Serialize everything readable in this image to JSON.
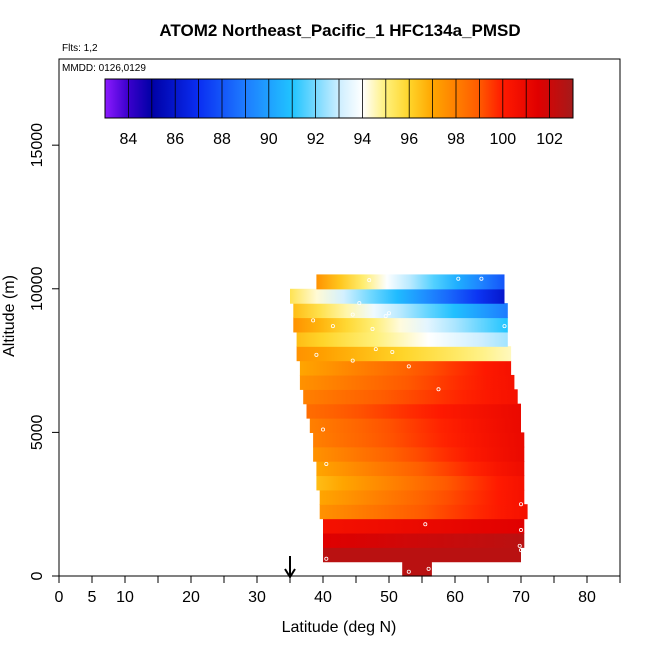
{
  "chart_data": {
    "type": "heatmap",
    "title": "ATOM2 Northeast_Pacific_1 HFC134a_PMSD",
    "flights_label": "Flts: 1,2",
    "mmdd_label": "MMDD: 0126,0129",
    "xlabel": "Latitude (deg N)",
    "ylabel": "Altitude (m)",
    "xlim": [
      0,
      85
    ],
    "ylim": [
      0,
      18000
    ],
    "xticks": [
      0,
      5,
      10,
      20,
      30,
      40,
      50,
      60,
      70,
      80
    ],
    "xticks_minor": [
      15,
      25,
      35,
      45,
      55,
      65,
      75,
      85
    ],
    "yticks": [
      0,
      5000,
      10000,
      15000
    ],
    "arrow_marker_lat": 35,
    "colorbar": {
      "min": 83,
      "max": 103,
      "ticks": [
        84,
        86,
        88,
        90,
        92,
        94,
        96,
        98,
        100,
        102
      ],
      "stops": [
        {
          "v": 83,
          "color": "#8c1aff"
        },
        {
          "v": 84,
          "color": "#3a00cc"
        },
        {
          "v": 85,
          "color": "#0000a6"
        },
        {
          "v": 87,
          "color": "#0a2ef2"
        },
        {
          "v": 89,
          "color": "#1e7cff"
        },
        {
          "v": 91,
          "color": "#20c4ff"
        },
        {
          "v": 93,
          "color": "#cdeeff"
        },
        {
          "v": 94,
          "color": "#ffffff"
        },
        {
          "v": 95,
          "color": "#fff07a"
        },
        {
          "v": 96,
          "color": "#ffd52a"
        },
        {
          "v": 97,
          "color": "#ffa500"
        },
        {
          "v": 99,
          "color": "#ff5a00"
        },
        {
          "v": 100,
          "color": "#ff1a00"
        },
        {
          "v": 101.5,
          "color": "#e00000"
        },
        {
          "v": 103,
          "color": "#a51a1a"
        }
      ]
    },
    "layer_altitudes_m": [
      0,
      500,
      1000,
      1500,
      2000,
      2500,
      3000,
      3500,
      4000,
      4500,
      5000,
      5500,
      6000,
      6500,
      7000,
      7500,
      8000,
      8500,
      9000,
      9500,
      10000,
      10500
    ],
    "layers": [
      {
        "lat0": 52.0,
        "lat1": 56.5,
        "v0": 102.5,
        "v1": 102.5
      },
      {
        "lat0": 40.0,
        "lat1": 70.0,
        "v0": 102.5,
        "v1": 102.5
      },
      {
        "lat0": 40.0,
        "lat1": 70.5,
        "v0": 101.5,
        "v1": 102.5
      },
      {
        "lat0": 40.0,
        "lat1": 70.5,
        "v0": 100.5,
        "v1": 101.5
      },
      {
        "lat0": 39.5,
        "lat1": 71.0,
        "v0": 97.5,
        "v1": 100.5
      },
      {
        "lat0": 39.5,
        "lat1": 70.5,
        "v0": 97.0,
        "v1": 100.5
      },
      {
        "lat0": 39.0,
        "lat1": 70.5,
        "v0": 96.5,
        "v1": 100.5
      },
      {
        "lat0": 39.0,
        "lat1": 70.5,
        "v0": 97.0,
        "v1": 100.8
      },
      {
        "lat0": 38.5,
        "lat1": 70.5,
        "v0": 97.5,
        "v1": 101.0
      },
      {
        "lat0": 38.5,
        "lat1": 70.5,
        "v0": 98.0,
        "v1": 101.0
      },
      {
        "lat0": 38.0,
        "lat1": 70.0,
        "v0": 98.0,
        "v1": 101.0
      },
      {
        "lat0": 37.5,
        "lat1": 70.0,
        "v0": 98.5,
        "v1": 101.0
      },
      {
        "lat0": 37.0,
        "lat1": 69.5,
        "v0": 98.0,
        "v1": 100.5
      },
      {
        "lat0": 36.5,
        "lat1": 69.0,
        "v0": 97.5,
        "v1": 100.5
      },
      {
        "lat0": 36.5,
        "lat1": 68.5,
        "v0": 97.0,
        "v1": 100.5
      },
      {
        "lat0": 36.0,
        "lat1": 68.5,
        "v0": 97.5,
        "v1": 94.5
      },
      {
        "lat0": 36.0,
        "lat1": 68.0,
        "v0": 96.5,
        "v1": 92.5
      },
      {
        "lat0": 35.5,
        "lat1": 68.0,
        "v0": 97.5,
        "v1": 91.0
      },
      {
        "lat0": 35.5,
        "lat1": 68.0,
        "v0": 96.5,
        "v1": 89.0
      },
      {
        "lat0": 35.0,
        "lat1": 67.5,
        "v0": 95.5,
        "v1": 86.0
      },
      {
        "lat0": 39.0,
        "lat1": 67.5,
        "v0": 97.5,
        "v1": 88.0
      },
      {
        "lat0": 66.5,
        "lat1": 67.5,
        "v0": 86.0,
        "v1": 85.0
      }
    ],
    "sample_points": [
      [
        53.0,
        150
      ],
      [
        56.0,
        250
      ],
      [
        40.5,
        600
      ],
      [
        70.0,
        900
      ],
      [
        69.8,
        1050
      ],
      [
        55.5,
        1800
      ],
      [
        70.0,
        1600
      ],
      [
        70.0,
        2500
      ],
      [
        71.0,
        2800
      ],
      [
        40.5,
        3900
      ],
      [
        40.0,
        5100
      ],
      [
        44.5,
        7500
      ],
      [
        39.0,
        7700
      ],
      [
        53.0,
        7300
      ],
      [
        57.5,
        6500
      ],
      [
        48.0,
        7900
      ],
      [
        50.5,
        7800
      ],
      [
        38.5,
        8900
      ],
      [
        41.5,
        8700
      ],
      [
        47.5,
        8600
      ],
      [
        44.5,
        9100
      ],
      [
        49.5,
        9050
      ],
      [
        50.0,
        9150
      ],
      [
        45.5,
        9500
      ],
      [
        67.5,
        8700
      ],
      [
        47.0,
        10300
      ],
      [
        60.5,
        10350
      ],
      [
        64.0,
        10350
      ],
      [
        67.0,
        10700
      ]
    ]
  }
}
